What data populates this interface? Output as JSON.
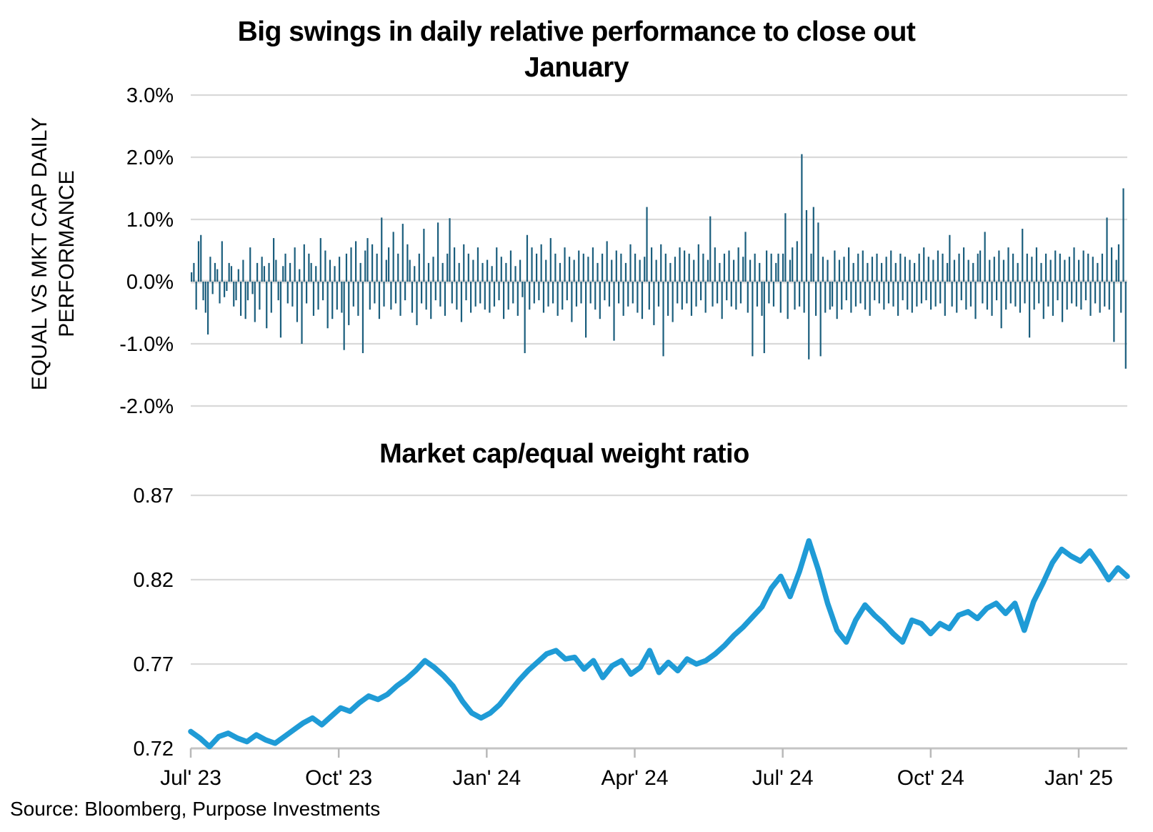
{
  "source": "Source: Bloomberg, Purpose Investments",
  "top_chart": {
    "title_line1": "Big swings in daily relative performance to close out",
    "title_line2": "January",
    "y_axis_title_line1": "EQUAL VS MKT CAP DAILY",
    "y_axis_title_line2": "PERFORMANCE"
  },
  "bottom_chart": {
    "title": "Market cap/equal weight ratio"
  },
  "chart_data": [
    {
      "type": "bar",
      "title": "Big swings in daily relative performance to close out January",
      "ylabel": "EQUAL VS MKT CAP DAILY PERFORMANCE",
      "unit": "percent",
      "ylim": [
        -2.0,
        3.0
      ],
      "y_tick_labels": [
        "3.0%",
        "2.0%",
        "1.0%",
        "0.0%",
        "-1.0%",
        "-2.0%"
      ],
      "y_tick_values": [
        3,
        2,
        1,
        0,
        -1,
        -2
      ],
      "grid": true,
      "legend": "none",
      "bar_color": "#1b5e7d",
      "gridline_color": "#d9d9d9",
      "x_range_note": "daily values Jul 2023 - early Feb 2025",
      "values": [
        0.15,
        0.3,
        -0.45,
        0.65,
        0.75,
        -0.3,
        -0.5,
        -0.85,
        0.4,
        -0.2,
        0.3,
        0.2,
        -0.35,
        0.65,
        -0.25,
        -0.15,
        0.3,
        0.25,
        -0.4,
        -0.3,
        0.2,
        -0.55,
        0.35,
        -0.6,
        -0.3,
        0.55,
        -0.2,
        -0.65,
        0.3,
        -0.45,
        0.4,
        0.25,
        -0.75,
        0.3,
        -0.5,
        0.7,
        0.35,
        -0.3,
        -0.9,
        0.25,
        0.45,
        -0.35,
        0.3,
        -0.4,
        0.55,
        -0.65,
        0.2,
        -1.0,
        0.6,
        -0.35,
        0.45,
        0.3,
        -0.55,
        0.25,
        -0.45,
        0.7,
        -0.3,
        0.5,
        -0.75,
        0.35,
        -0.6,
        0.25,
        -0.45,
        0.4,
        -0.5,
        -1.1,
        0.45,
        -0.7,
        0.55,
        -0.4,
        0.65,
        -0.55,
        0.3,
        -1.15,
        0.5,
        0.7,
        -0.45,
        0.6,
        -0.35,
        0.45,
        -0.6,
        1.03,
        -0.4,
        0.35,
        0.55,
        -0.45,
        0.8,
        -0.35,
        0.45,
        -0.55,
        0.93,
        -0.3,
        0.6,
        0.35,
        -0.5,
        0.25,
        -0.7,
        0.45,
        -0.35,
        0.85,
        -0.45,
        0.3,
        -0.6,
        0.4,
        -0.3,
        0.95,
        -0.4,
        0.3,
        -0.55,
        0.45,
        1.02,
        -0.35,
        0.55,
        -0.45,
        0.3,
        -0.65,
        0.6,
        -0.3,
        0.45,
        -0.5,
        0.35,
        -0.4,
        0.55,
        -0.35,
        0.3,
        -0.45,
        0.35,
        -0.5,
        0.25,
        -0.4,
        0.55,
        -0.3,
        0.4,
        -0.6,
        0.3,
        -0.45,
        0.5,
        -0.35,
        0.25,
        -0.55,
        0.35,
        -0.25,
        -1.15,
        0.75,
        -0.45,
        0.55,
        -0.35,
        0.45,
        -0.3,
        0.6,
        -0.5,
        0.35,
        -0.4,
        0.7,
        -0.35,
        0.45,
        -0.55,
        0.3,
        -0.45,
        0.55,
        -0.3,
        0.4,
        -0.65,
        0.35,
        -0.4,
        0.5,
        -0.35,
        0.45,
        -0.9,
        0.4,
        -0.35,
        0.55,
        -0.45,
        0.3,
        -0.6,
        0.45,
        -0.3,
        0.65,
        -0.4,
        0.35,
        -0.95,
        0.5,
        -0.35,
        0.45,
        -0.55,
        0.3,
        -0.4,
        0.6,
        -0.35,
        0.45,
        -0.5,
        0.35,
        -0.6,
        0.4,
        1.2,
        -0.45,
        0.55,
        -0.7,
        0.35,
        -0.4,
        0.6,
        -1.2,
        0.45,
        -0.55,
        0.3,
        -0.65,
        0.4,
        -0.35,
        0.55,
        -0.45,
        0.5,
        -0.35,
        0.45,
        -0.55,
        0.35,
        -0.4,
        0.6,
        -0.3,
        0.45,
        -0.5,
        0.35,
        1.05,
        -0.4,
        0.55,
        -0.35,
        0.3,
        -0.6,
        0.45,
        -0.3,
        0.5,
        -0.4,
        0.35,
        -0.45,
        0.55,
        -0.35,
        0.4,
        0.8,
        -0.5,
        0.35,
        -1.2,
        0.45,
        -0.4,
        0.3,
        -0.55,
        -1.15,
        0.5,
        -0.35,
        0.45,
        -0.4,
        0.3,
        0.45,
        -0.5,
        0.45,
        1.1,
        -0.6,
        0.35,
        0.55,
        -0.45,
        0.65,
        -0.4,
        2.05,
        -0.5,
        1.15,
        -1.25,
        0.45,
        1.2,
        -0.55,
        0.95,
        -1.2,
        0.4,
        -0.5,
        0.35,
        -0.45,
        -0.4,
        0.5,
        -0.6,
        0.35,
        -0.45,
        0.4,
        -0.3,
        0.55,
        -0.5,
        0.3,
        -0.4,
        0.45,
        -0.35,
        0.5,
        -0.45,
        0.3,
        -0.55,
        0.4,
        -0.3,
        0.45,
        -0.35,
        0.3,
        -0.45,
        0.4,
        -0.35,
        0.5,
        -0.4,
        0.3,
        -0.55,
        0.45,
        -0.3,
        0.4,
        -0.45,
        0.35,
        -0.5,
        0.3,
        -0.4,
        0.45,
        -0.35,
        0.55,
        -0.3,
        0.4,
        -0.45,
        0.35,
        -0.4,
        0.5,
        -0.35,
        0.45,
        -0.55,
        0.3,
        0.75,
        -0.4,
        0.35,
        -0.5,
        0.45,
        -0.3,
        0.55,
        -0.45,
        0.35,
        -0.4,
        0.3,
        -0.6,
        0.45,
        0.5,
        -0.35,
        0.8,
        -0.45,
        0.35,
        -0.55,
        0.4,
        -0.3,
        0.5,
        -0.75,
        0.35,
        -0.45,
        0.55,
        -0.35,
        0.45,
        -0.4,
        0.3,
        -0.5,
        0.85,
        -0.35,
        0.45,
        -0.9,
        0.4,
        -0.45,
        0.55,
        -0.35,
        0.3,
        -0.6,
        0.45,
        -0.4,
        0.35,
        -0.55,
        0.5,
        -0.3,
        0.45,
        -0.65,
        0.35,
        -0.45,
        0.4,
        -0.35,
        0.55,
        -0.4,
        0.35,
        -0.45,
        0.5,
        -0.3,
        0.45,
        -0.55,
        0.4,
        -0.35,
        0.3,
        -0.5,
        0.45,
        -0.4,
        1.03,
        -0.45,
        0.55,
        -0.97,
        0.35,
        0.6,
        -0.5,
        1.5,
        -1.4
      ]
    },
    {
      "type": "line",
      "title": "Market cap/equal weight ratio",
      "ylim": [
        0.72,
        0.87
      ],
      "y_tick_labels": [
        "0.87",
        "0.82",
        "0.77",
        "0.72"
      ],
      "y_tick_values": [
        0.87,
        0.82,
        0.77,
        0.72
      ],
      "x_tick_labels": [
        "Jul' 23",
        "Oct' 23",
        "Jan' 24",
        "Apr' 24",
        "Jul' 24",
        "Oct' 24",
        "Jan' 25"
      ],
      "grid": true,
      "legend": "none",
      "line_color": "#1f9bd6",
      "gridline_color": "#d9d9d9",
      "values": [
        0.73,
        0.726,
        0.721,
        0.727,
        0.729,
        0.726,
        0.724,
        0.728,
        0.725,
        0.723,
        0.727,
        0.731,
        0.735,
        0.738,
        0.734,
        0.739,
        0.744,
        0.742,
        0.747,
        0.751,
        0.749,
        0.752,
        0.757,
        0.761,
        0.766,
        0.772,
        0.768,
        0.763,
        0.757,
        0.748,
        0.741,
        0.738,
        0.741,
        0.746,
        0.753,
        0.76,
        0.766,
        0.771,
        0.776,
        0.778,
        0.773,
        0.774,
        0.767,
        0.772,
        0.762,
        0.769,
        0.772,
        0.764,
        0.768,
        0.778,
        0.765,
        0.771,
        0.766,
        0.773,
        0.77,
        0.772,
        0.776,
        0.781,
        0.787,
        0.792,
        0.798,
        0.804,
        0.815,
        0.822,
        0.81,
        0.825,
        0.843,
        0.826,
        0.806,
        0.79,
        0.783,
        0.796,
        0.805,
        0.799,
        0.794,
        0.788,
        0.783,
        0.796,
        0.794,
        0.788,
        0.794,
        0.791,
        0.799,
        0.801,
        0.797,
        0.803,
        0.806,
        0.8,
        0.806,
        0.79,
        0.807,
        0.818,
        0.83,
        0.838,
        0.834,
        0.831,
        0.837,
        0.829,
        0.82,
        0.827,
        0.822
      ]
    }
  ]
}
